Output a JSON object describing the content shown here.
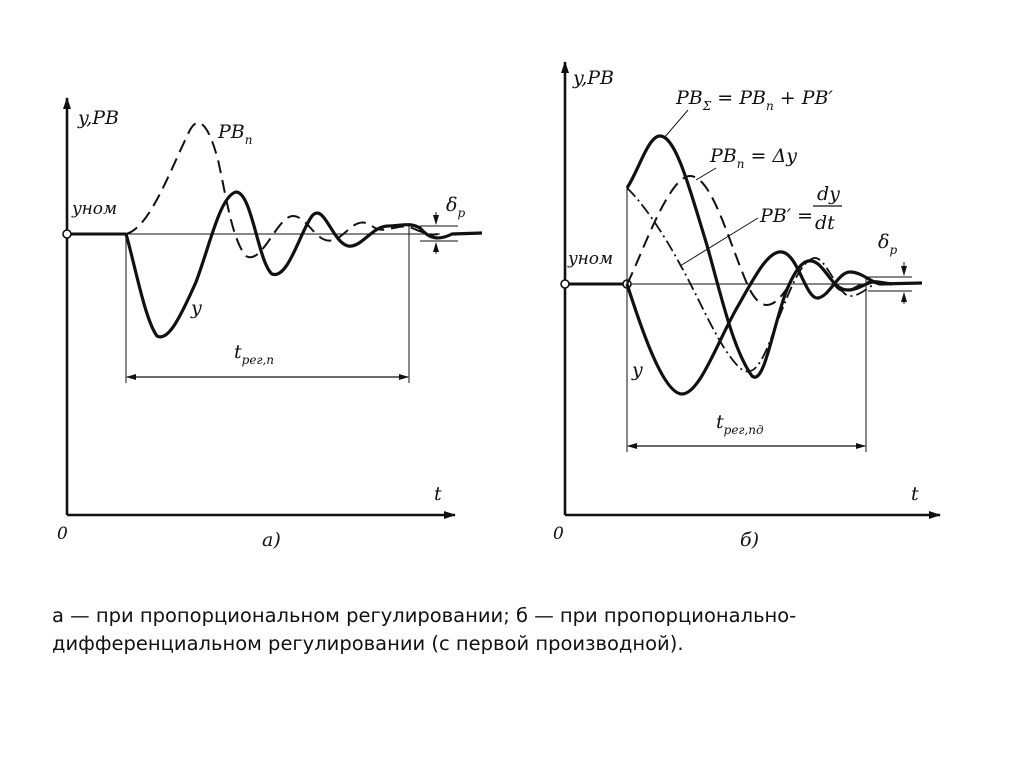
{
  "panel_a": {
    "y_axis_label": "y,PB",
    "origin_label": "0",
    "t_label": "t",
    "y_nom_label": "yном",
    "pb_label": "PBп",
    "y_curve_label": "y",
    "t_reg_label": "tрег,п",
    "delta_label": "δр",
    "panel_label": "а)"
  },
  "panel_b": {
    "y_axis_label": "y,PB",
    "origin_label": "0",
    "t_label": "t",
    "y_nom_label": "yном",
    "pb_sum_label": "PBΣ = PBп + PB′",
    "pb_p_label": "PBп = Δy",
    "pb_d_label": "PB′ = dy/dt",
    "y_curve_label": "y",
    "t_reg_label": "tрег,пд",
    "delta_label": "δр",
    "panel_label": "б)"
  },
  "caption": "а — при пропорциональном регулировании; б — при пропорционально-дифференциальном регулировании (с первой производной)."
}
